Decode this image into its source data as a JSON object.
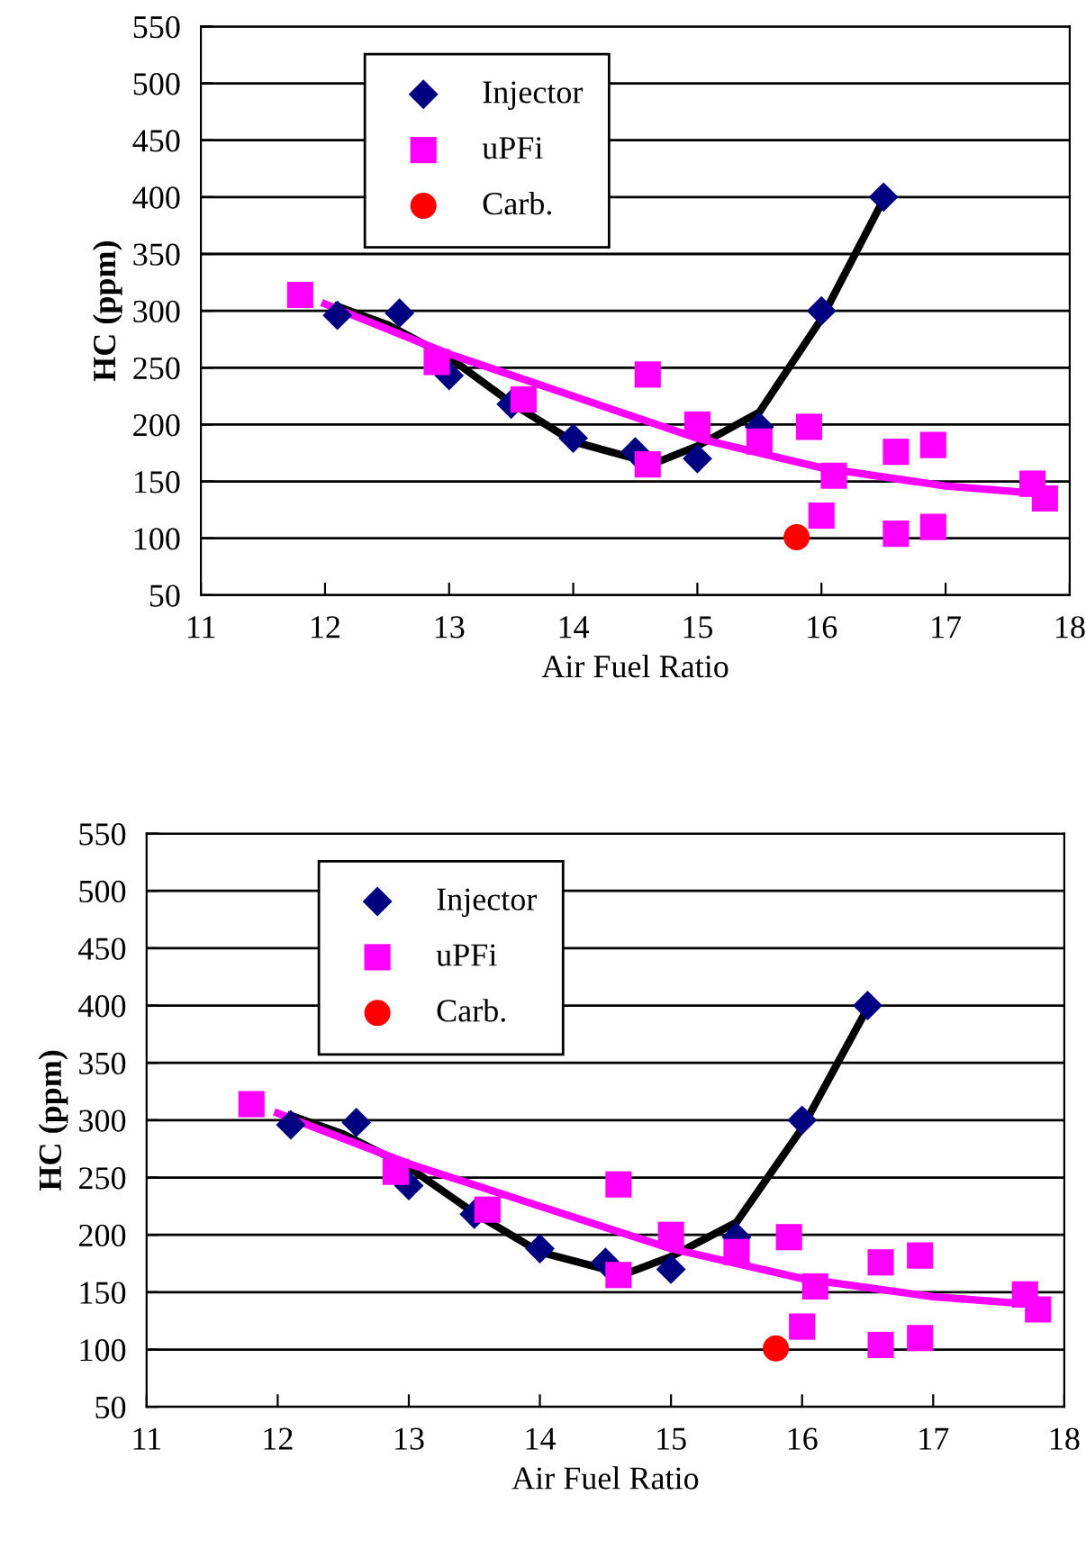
{
  "chart_data": [
    {
      "type": "scatter",
      "xlabel": "Air Fuel Ratio",
      "ylabel": "HC (ppm)",
      "xlim": [
        11,
        18
      ],
      "xticks": [
        11,
        12,
        13,
        14,
        15,
        16,
        17,
        18
      ],
      "ylim": [
        50,
        550
      ],
      "yticks": [
        50,
        100,
        150,
        200,
        250,
        300,
        350,
        400,
        450,
        500,
        550
      ],
      "grid": "y",
      "legend": "top left",
      "series": [
        {
          "name": "Injector",
          "color": "#000080",
          "marker": "diamond",
          "x": [
            12.1,
            12.6,
            13,
            13.5,
            14,
            14.5,
            15,
            15.5,
            16,
            16.5
          ],
          "values": [
            296,
            298,
            243,
            218,
            188,
            176,
            170,
            198,
            300,
            400
          ]
        },
        {
          "name": "uPFi",
          "color": "#ff00ff",
          "marker": "square",
          "x": [
            11.8,
            12.9,
            13.6,
            14.6,
            14.6,
            15,
            15.5,
            15.9,
            16,
            16.1,
            16.6,
            16.6,
            16.9,
            16.9,
            17.7,
            17.8
          ],
          "values": [
            314,
            255,
            222,
            244,
            165,
            200,
            185,
            198,
            120,
            155,
            176,
            104,
            182,
            110,
            148,
            135
          ]
        },
        {
          "name": "Carb.",
          "color": "#ff0000",
          "marker": "circle",
          "x": [
            15.8
          ],
          "values": [
            101
          ]
        },
        {
          "type": "line",
          "color": "#000000",
          "x": [
            12.1,
            12.5,
            13,
            13.5,
            14,
            14.5,
            14.7,
            15,
            15.5,
            16,
            16.5
          ],
          "values": [
            304,
            288,
            259,
            219,
            185,
            170,
            168,
            181,
            211,
            293,
            398
          ]
        },
        {
          "type": "line",
          "color": "#ff00ff",
          "x": [
            12.0,
            13,
            14,
            15,
            16,
            17,
            17.8
          ],
          "values": [
            306,
            262,
            225,
            188,
            162,
            146,
            139
          ]
        }
      ]
    },
    {
      "type": "scatter",
      "xlabel": "Air Fuel Ratio",
      "ylabel": "HC (ppm)",
      "xlim": [
        11,
        18
      ],
      "xticks": [
        11,
        12,
        13,
        14,
        15,
        16,
        17,
        18
      ],
      "ylim": [
        50,
        550
      ],
      "yticks": [
        50,
        100,
        150,
        200,
        250,
        300,
        350,
        400,
        450,
        500,
        550
      ],
      "grid": "y",
      "legend": "top left",
      "series": [
        {
          "name": "Injector",
          "color": "#000080",
          "marker": "diamond",
          "x": [
            12.1,
            12.6,
            13,
            13.5,
            14,
            14.5,
            15,
            15.5,
            16,
            16.5
          ],
          "values": [
            296,
            298,
            243,
            218,
            188,
            176,
            170,
            198,
            300,
            400
          ]
        },
        {
          "name": "uPFi",
          "color": "#ff00ff",
          "marker": "square",
          "x": [
            11.8,
            12.9,
            13.6,
            14.6,
            14.6,
            15,
            15.5,
            15.9,
            16,
            16.1,
            16.6,
            16.6,
            16.9,
            16.9,
            17.7,
            17.8
          ],
          "values": [
            314,
            255,
            222,
            244,
            165,
            200,
            185,
            198,
            120,
            155,
            176,
            104,
            182,
            110,
            148,
            135
          ]
        },
        {
          "name": "Carb.",
          "color": "#ff0000",
          "marker": "circle",
          "x": [
            15.8
          ],
          "values": [
            101
          ]
        },
        {
          "type": "line",
          "color": "#000000",
          "x": [
            12.1,
            12.5,
            13,
            13.5,
            14,
            14.5,
            14.7,
            15,
            15.5,
            16,
            16.5
          ],
          "values": [
            304,
            288,
            259,
            219,
            185,
            170,
            168,
            181,
            211,
            293,
            398
          ]
        },
        {
          "type": "line",
          "color": "#ff00ff",
          "x": [
            12.0,
            13,
            14,
            15,
            16,
            17,
            17.8
          ],
          "values": [
            306,
            262,
            225,
            188,
            162,
            146,
            139
          ]
        }
      ]
    }
  ]
}
